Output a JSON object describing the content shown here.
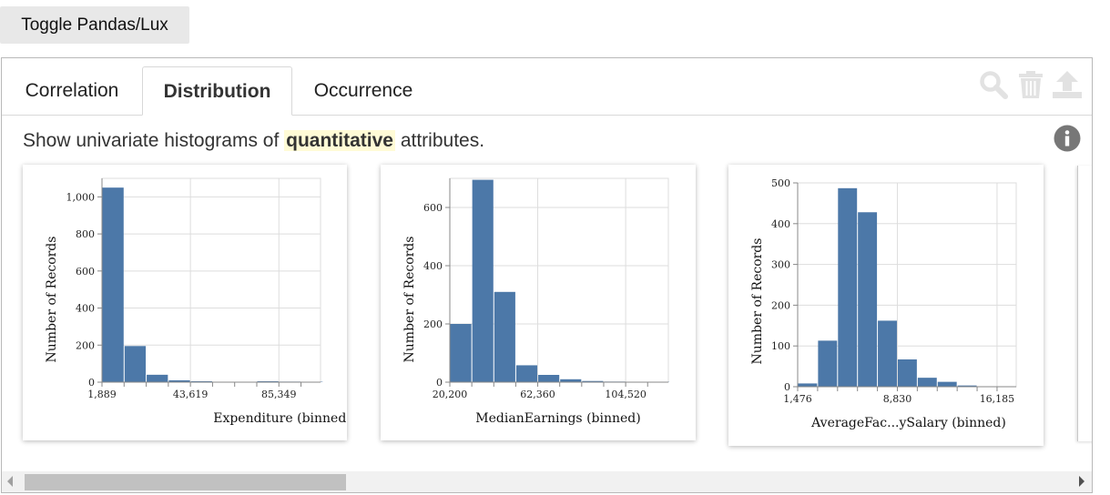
{
  "toggle_button": {
    "label": "Toggle Pandas/Lux"
  },
  "tabs": [
    {
      "label": "Correlation",
      "active": false
    },
    {
      "label": "Distribution",
      "active": true
    },
    {
      "label": "Occurrence",
      "active": false
    }
  ],
  "toolbar_icons": [
    "search-icon",
    "trash-icon",
    "upload-icon"
  ],
  "description": {
    "prefix": "Show univariate histograms of ",
    "highlight": "quantitative",
    "suffix": " attributes."
  },
  "colors": {
    "bar": "#4c78a8",
    "highlight_bg": "#fffbd6",
    "grid": "#dddddd",
    "info_icon": "#777777"
  },
  "chart_data": [
    {
      "type": "bar",
      "xlabel": "Expenditure (binned)",
      "ylabel": "Number of Records",
      "ylim": [
        0,
        1100
      ],
      "yticks": [
        0,
        200,
        400,
        600,
        800,
        1000
      ],
      "ytick_labels": [
        "0",
        "200",
        "400",
        "600",
        "800",
        "1,000"
      ],
      "xlim": [
        1889,
        105000
      ],
      "xticks": [
        1889,
        43619,
        85349
      ],
      "xtick_labels": [
        "1,889",
        "43,619",
        "85,349"
      ],
      "bin_width": 10433,
      "values": [
        1050,
        195,
        40,
        10,
        5,
        2,
        2,
        5,
        3,
        2
      ],
      "grid": true
    },
    {
      "type": "bar",
      "xlabel": "MedianEarnings (binned)",
      "ylabel": "Number of Records",
      "ylim": [
        0,
        700
      ],
      "yticks": [
        0,
        200,
        400,
        600
      ],
      "ytick_labels": [
        "0",
        "200",
        "400",
        "600"
      ],
      "xlim": [
        20200,
        125000
      ],
      "xticks": [
        20200,
        62360,
        104520
      ],
      "xtick_labels": [
        "20,200",
        "62,360",
        "104,520"
      ],
      "bin_width": 10540,
      "values": [
        200,
        695,
        310,
        58,
        25,
        10,
        4,
        2,
        1,
        1
      ],
      "grid": true
    },
    {
      "type": "bar",
      "xlabel": "AverageFac...ySalary (binned)",
      "ylabel": "Number of Records",
      "ylim": [
        0,
        500
      ],
      "yticks": [
        0,
        100,
        200,
        300,
        400,
        500
      ],
      "ytick_labels": [
        "0",
        "100",
        "200",
        "300",
        "400",
        "500"
      ],
      "xlim": [
        1476,
        17600
      ],
      "xticks": [
        1476,
        8830,
        16185
      ],
      "xtick_labels": [
        "1,476",
        "8,830",
        "16,185"
      ],
      "bin_width": 1471,
      "values": [
        8,
        113,
        487,
        428,
        162,
        67,
        22,
        12,
        3
      ],
      "grid": true
    }
  ]
}
